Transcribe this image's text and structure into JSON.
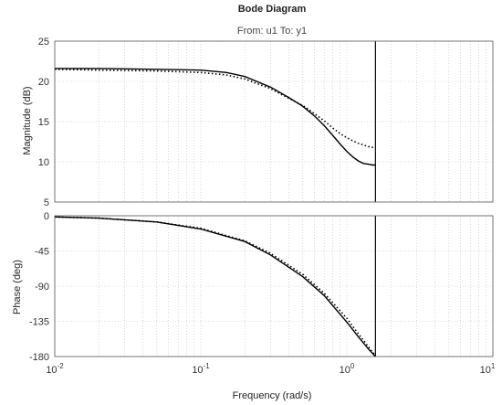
{
  "chart_data": {
    "type": "line",
    "title": "Bode Diagram",
    "subtitle": "From: u1  To: y1",
    "xlabel": "Frequency  (rad/s)",
    "xscale": "log",
    "xlim": [
      0.01,
      10
    ],
    "nyquist_frequency": 1.57,
    "x_tick_labels": [
      {
        "value": 0.01,
        "base": "10",
        "exp": "-2"
      },
      {
        "value": 0.1,
        "base": "10",
        "exp": "-1"
      },
      {
        "value": 1,
        "base": "10",
        "exp": "0"
      },
      {
        "value": 10,
        "base": "10",
        "exp": "1"
      }
    ],
    "grid": true,
    "panels": [
      {
        "ylabel": "Magnitude (dB)",
        "ylim": [
          5,
          25
        ],
        "yticks": [
          5,
          10,
          15,
          20,
          25
        ],
        "series": [
          {
            "style": "solid",
            "x": [
              0.01,
              0.02,
              0.05,
              0.1,
              0.15,
              0.2,
              0.3,
              0.4,
              0.5,
              0.6,
              0.7,
              0.8,
              0.9,
              1.0,
              1.1,
              1.2,
              1.3,
              1.4,
              1.5,
              1.57
            ],
            "y": [
              21.6,
              21.6,
              21.5,
              21.4,
              21.1,
              20.6,
              19.3,
              18.0,
              16.9,
              15.7,
              14.5,
              13.3,
              12.2,
              11.3,
              10.6,
              10.1,
              9.8,
              9.7,
              9.6,
              9.6
            ]
          },
          {
            "style": "dotted",
            "x": [
              0.01,
              0.02,
              0.05,
              0.1,
              0.15,
              0.2,
              0.3,
              0.4,
              0.5,
              0.6,
              0.7,
              0.8,
              0.9,
              1.0,
              1.1,
              1.2,
              1.3,
              1.4,
              1.5,
              1.57
            ],
            "y": [
              21.5,
              21.4,
              21.3,
              21.1,
              20.8,
              20.3,
              19.1,
              17.9,
              17.0,
              16.0,
              15.1,
              14.2,
              13.5,
              13.0,
              12.6,
              12.3,
              12.1,
              11.9,
              11.8,
              11.8
            ]
          }
        ]
      },
      {
        "ylabel": "Phase (deg)",
        "ylim": [
          -180,
          0
        ],
        "yticks": [
          -180,
          -135,
          -90,
          -45,
          0
        ],
        "series": [
          {
            "style": "solid",
            "x": [
              0.01,
              0.02,
              0.05,
              0.1,
              0.2,
              0.3,
              0.5,
              0.7,
              1.0,
              1.2,
              1.4,
              1.57
            ],
            "y": [
              -1.5,
              -3,
              -8,
              -17,
              -33,
              -50,
              -78,
              -102,
              -136,
              -155,
              -170,
              -180
            ]
          },
          {
            "style": "dotted",
            "x": [
              0.01,
              0.02,
              0.05,
              0.1,
              0.2,
              0.3,
              0.5,
              0.7,
              1.0,
              1.2,
              1.4,
              1.57
            ],
            "y": [
              -1.5,
              -3,
              -8,
              -16,
              -32,
              -48,
              -75,
              -99,
              -131,
              -151,
              -167,
              -179
            ]
          }
        ]
      }
    ]
  }
}
